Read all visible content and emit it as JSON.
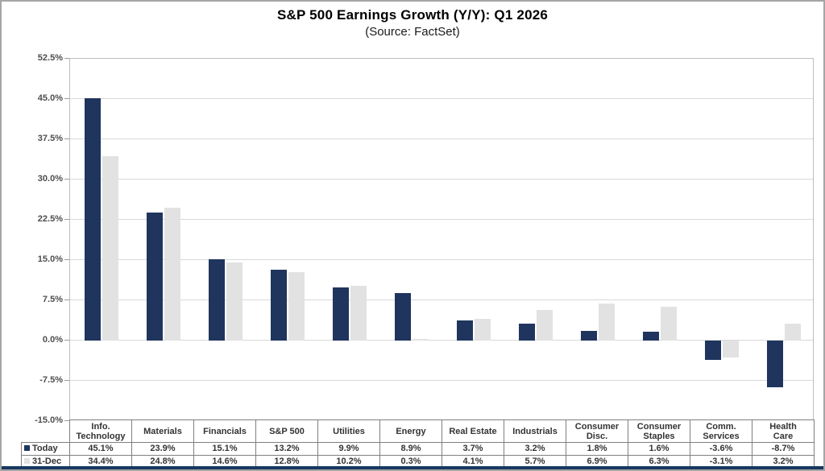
{
  "title": "S&P 500 Earnings Growth (Y/Y): Q1 2026",
  "subtitle": "(Source: FactSet)",
  "colors": {
    "today_bar": "#1F355E",
    "dec_bar": "#E2E2E2",
    "gridline": "#D9D9D9",
    "plot_border": "#BDBDBD",
    "table_border": "#7F7F7F",
    "bottom_rule": "#17375E",
    "outer_border": "#A6A6A6",
    "axis_text": "#4d4d4d"
  },
  "chart_data": {
    "type": "bar",
    "categories": [
      "Info.\nTechnology",
      "Materials",
      "Financials",
      "S&P 500",
      "Utilities",
      "Energy",
      "Real Estate",
      "Industrials",
      "Consumer\nDisc.",
      "Consumer\nStaples",
      "Comm.\nServices",
      "Health\nCare"
    ],
    "series": [
      {
        "name": "Today",
        "color": "#1F355E",
        "values": [
          45.1,
          23.9,
          15.1,
          13.2,
          9.9,
          8.9,
          3.7,
          3.2,
          1.8,
          1.6,
          -3.6,
          -8.7
        ]
      },
      {
        "name": "31-Dec",
        "color": "#E2E2E2",
        "values": [
          34.4,
          24.8,
          14.6,
          12.8,
          10.2,
          0.3,
          4.1,
          5.7,
          6.9,
          6.3,
          -3.1,
          3.2
        ]
      }
    ],
    "title": "S&P 500 Earnings Growth (Y/Y): Q1 2026",
    "subtitle": "(Source: FactSet)",
    "xlabel": "",
    "ylabel": "",
    "ylim": [
      -15.0,
      52.5
    ],
    "ytick_step": 7.5,
    "ytick_labels": [
      "52.5%",
      "45.0%",
      "37.5%",
      "30.0%",
      "22.5%",
      "15.0%",
      "7.5%",
      "0.0%",
      "-7.5%",
      "-15.0%"
    ],
    "grid": "horizontal",
    "legend_position": "table-left",
    "value_format": "one_decimal_percent"
  }
}
